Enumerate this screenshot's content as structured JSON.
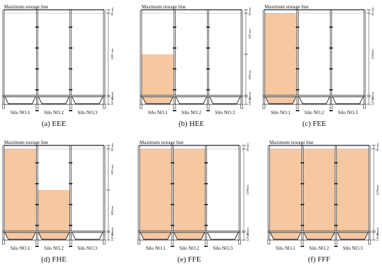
{
  "figure": {
    "max_storage_label": "Maximum storage line",
    "silo_labels": [
      "Silo NO.1",
      "Silo NO.2",
      "Silo NO.3"
    ],
    "fill_color": "#F5C8A2",
    "line_color": "#222222",
    "panels": [
      {
        "caption": "(a) EEE",
        "fill_levels": [
          0,
          0,
          0
        ],
        "dims": [
          "80 mm",
          "1200 mm",
          "20 mm",
          "120 mm"
        ]
      },
      {
        "caption": "(b) HEE",
        "fill_levels": [
          0.5,
          0,
          0
        ],
        "dims": [
          "80 mm",
          "600 mm",
          "600mm",
          "20 mm",
          "120 mm"
        ]
      },
      {
        "caption": "(c) FEE",
        "fill_levels": [
          1,
          0,
          0
        ],
        "dims": [
          "80 mm",
          "1200mm",
          "20 mm",
          "120 mm"
        ]
      },
      {
        "caption": "(d) FHE",
        "fill_levels": [
          1,
          0.5,
          0
        ],
        "dims": [
          "80 mm",
          "600 mm",
          "600mm",
          "20 mm",
          "120 mm"
        ]
      },
      {
        "caption": "(e) FFE",
        "fill_levels": [
          1,
          1,
          0
        ],
        "dims": [
          "80 mm",
          "1200mm",
          "20 mm",
          "120 mm"
        ]
      },
      {
        "caption": "(f) FFF",
        "fill_levels": [
          1,
          1,
          1
        ],
        "dims": [
          "80 mm",
          "1200mm",
          "20 mm",
          "120 mm"
        ]
      }
    ]
  }
}
